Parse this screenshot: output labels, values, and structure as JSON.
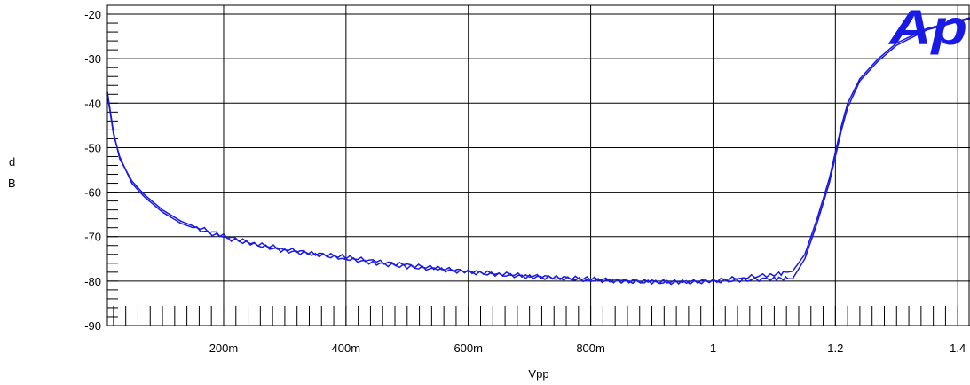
{
  "chart_data": {
    "type": "line",
    "title": "",
    "xlabel": "Vpp",
    "ylabel": "dB",
    "ylabel_chars": [
      "d",
      "B"
    ],
    "xlim": [
      0.01,
      1.42
    ],
    "ylim": [
      -90,
      -18
    ],
    "x_ticks": [
      {
        "value": 0.2,
        "label": "200m"
      },
      {
        "value": 0.4,
        "label": "400m"
      },
      {
        "value": 0.6,
        "label": "600m"
      },
      {
        "value": 0.8,
        "label": "800m"
      },
      {
        "value": 1.0,
        "label": "1"
      },
      {
        "value": 1.2,
        "label": "1.2"
      },
      {
        "value": 1.4,
        "label": "1.4"
      }
    ],
    "y_ticks": [
      {
        "value": -20,
        "label": "-20"
      },
      {
        "value": -30,
        "label": "-30"
      },
      {
        "value": -40,
        "label": "-40"
      },
      {
        "value": -50,
        "label": "-50"
      },
      {
        "value": -60,
        "label": "-60"
      },
      {
        "value": -70,
        "label": "-70"
      },
      {
        "value": -80,
        "label": "-80"
      },
      {
        "value": -90,
        "label": "-90"
      }
    ],
    "grid": true,
    "logo_text": "Ap",
    "series_color": "#1a1ae6",
    "logo_color": "#1a1ae6",
    "series": [
      {
        "x": [
          0.01,
          0.02,
          0.03,
          0.05,
          0.07,
          0.1,
          0.13,
          0.15,
          0.2,
          0.25,
          0.3,
          0.35,
          0.4,
          0.45,
          0.5,
          0.55,
          0.6,
          0.65,
          0.7,
          0.75,
          0.8,
          0.85,
          0.9,
          0.95,
          1.0,
          1.05,
          1.1,
          1.13,
          1.15,
          1.17,
          1.19,
          1.2,
          1.21,
          1.22,
          1.24,
          1.27,
          1.3,
          1.35,
          1.42
        ],
        "y": [
          -38,
          -47,
          -52,
          -58,
          -61,
          -64.5,
          -67,
          -68,
          -70.2,
          -71.8,
          -73.2,
          -74,
          -75,
          -76,
          -76.8,
          -77.4,
          -78,
          -78.6,
          -79,
          -79.4,
          -79.8,
          -80,
          -80.3,
          -80.3,
          -80.1,
          -79.8,
          -79.4,
          -79.5,
          -75,
          -67,
          -58,
          -52,
          -46,
          -41,
          -35,
          -30.5,
          -27,
          -23.5,
          -21
        ]
      },
      {
        "x": [
          0.01,
          0.02,
          0.03,
          0.05,
          0.07,
          0.1,
          0.13,
          0.15,
          0.2,
          0.25,
          0.3,
          0.35,
          0.4,
          0.45,
          0.5,
          0.55,
          0.6,
          0.65,
          0.7,
          0.75,
          0.8,
          0.85,
          0.9,
          0.95,
          1.0,
          1.05,
          1.1,
          1.13,
          1.15,
          1.17,
          1.19,
          1.2,
          1.21,
          1.22,
          1.24,
          1.27,
          1.3,
          1.35,
          1.42
        ],
        "y": [
          -37.5,
          -46.5,
          -52.5,
          -57.5,
          -60.5,
          -64,
          -66.5,
          -67.6,
          -69.8,
          -71.5,
          -72.8,
          -73.8,
          -74.6,
          -75.6,
          -76.4,
          -77.1,
          -77.8,
          -78.3,
          -78.8,
          -79.2,
          -79.5,
          -79.9,
          -80.1,
          -80.2,
          -79.9,
          -79.2,
          -78.5,
          -77.8,
          -74,
          -66,
          -57,
          -51,
          -45,
          -40,
          -34.5,
          -30,
          -26.5,
          -23.2,
          -20.8
        ]
      }
    ]
  }
}
